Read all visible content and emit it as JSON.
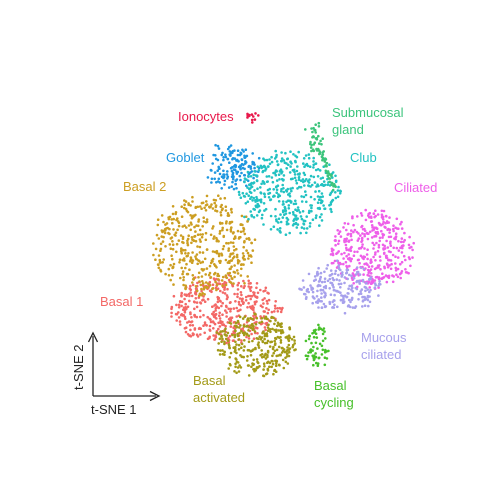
{
  "chart_data": {
    "type": "scatter",
    "title": "",
    "xlabel": "t-SNE 1",
    "ylabel": "t-SNE 2",
    "grid": false,
    "legend": "none",
    "series": [
      {
        "name": "Ionocytes",
        "color": "#e8194b"
      },
      {
        "name": "Submucosal gland",
        "color": "#3cc47c"
      },
      {
        "name": "Goblet",
        "color": "#1f97e0"
      },
      {
        "name": "Club",
        "color": "#22c2c2"
      },
      {
        "name": "Ciliated",
        "color": "#ee5fe9"
      },
      {
        "name": "Basal 2",
        "color": "#cc9e22"
      },
      {
        "name": "Basal 1",
        "color": "#f36866"
      },
      {
        "name": "Mucous ciliated",
        "color": "#a7a1ec"
      },
      {
        "name": "Basal activated",
        "color": "#a39a18"
      },
      {
        "name": "Basal cycling",
        "color": "#47c02a"
      }
    ]
  },
  "labels": {
    "ionocytes": "Ionocytes",
    "submucosal_1": "Submucosal",
    "submucosal_2": "gland",
    "goblet": "Goblet",
    "club": "Club",
    "ciliated": "Ciliated",
    "basal2": "Basal 2",
    "basal1": "Basal 1",
    "mucous_1": "Mucous",
    "mucous_2": "ciliated",
    "basal_activated_1": "Basal",
    "basal_activated_2": "activated",
    "basal_cycling_1": "Basal",
    "basal_cycling_2": "cycling"
  },
  "axes": {
    "x_title": "t-SNE 1",
    "y_title": "t-SNE 2"
  }
}
